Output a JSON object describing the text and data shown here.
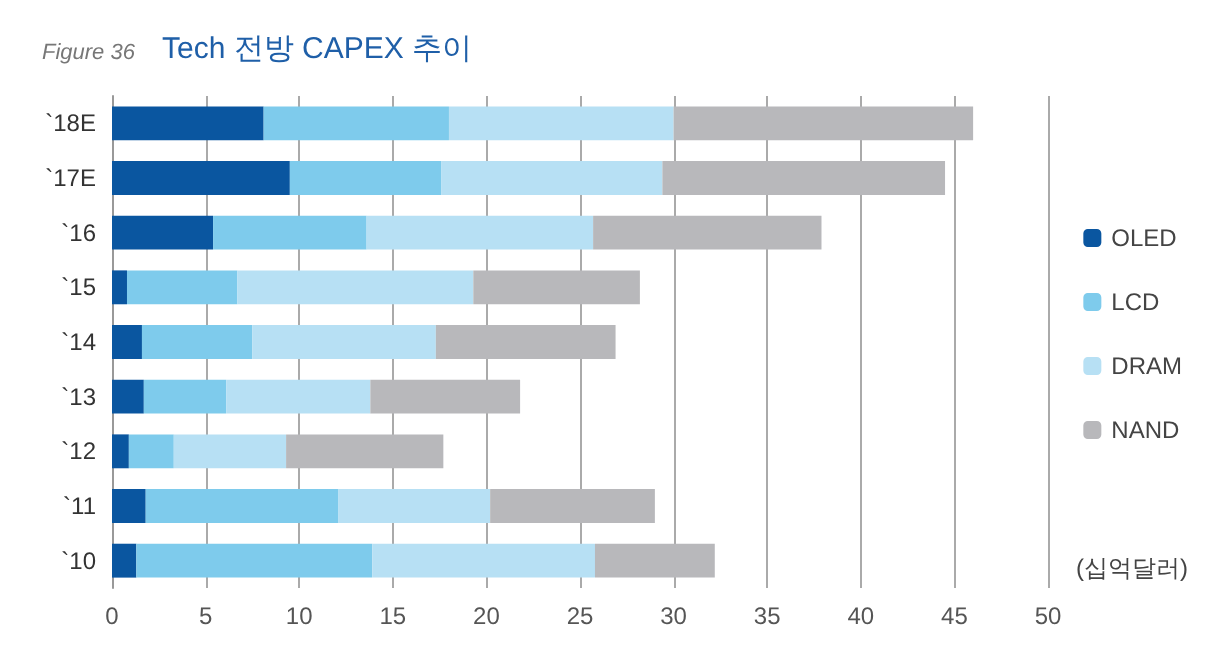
{
  "chart_data": {
    "type": "bar",
    "orientation": "horizontal",
    "stacked": true,
    "title": "Tech 전방 CAPEX 추이",
    "annotations": [
      "Figure 36"
    ],
    "xlabel": "(십억달러)",
    "categories": [
      "`18E",
      "`17E",
      "`16",
      "`15",
      "`14",
      "`13",
      "`12",
      "`11",
      "`10"
    ],
    "series": [
      {
        "name": "OLED",
        "color": "#0a56a0",
        "values": [
          8.1,
          9.5,
          5.4,
          0.8,
          1.6,
          1.7,
          0.9,
          1.8,
          1.3
        ]
      },
      {
        "name": "LCD",
        "color": "#7ecbec",
        "values": [
          9.9,
          8.1,
          8.2,
          5.9,
          5.9,
          4.4,
          2.4,
          10.3,
          12.6
        ]
      },
      {
        "name": "DRAM",
        "color": "#b7e0f4",
        "values": [
          12.0,
          11.8,
          12.1,
          12.6,
          9.8,
          7.7,
          6.0,
          8.1,
          11.9
        ]
      },
      {
        "name": "NAND",
        "color": "#b8b8bb",
        "values": [
          16.0,
          15.1,
          12.2,
          8.9,
          9.6,
          8.0,
          8.4,
          8.8,
          6.4
        ]
      }
    ],
    "xlim": [
      0,
      50
    ],
    "xticks": [
      0,
      5,
      10,
      15,
      20,
      25,
      30,
      35,
      40,
      45,
      50
    ],
    "grid": "x",
    "legend": "right"
  }
}
